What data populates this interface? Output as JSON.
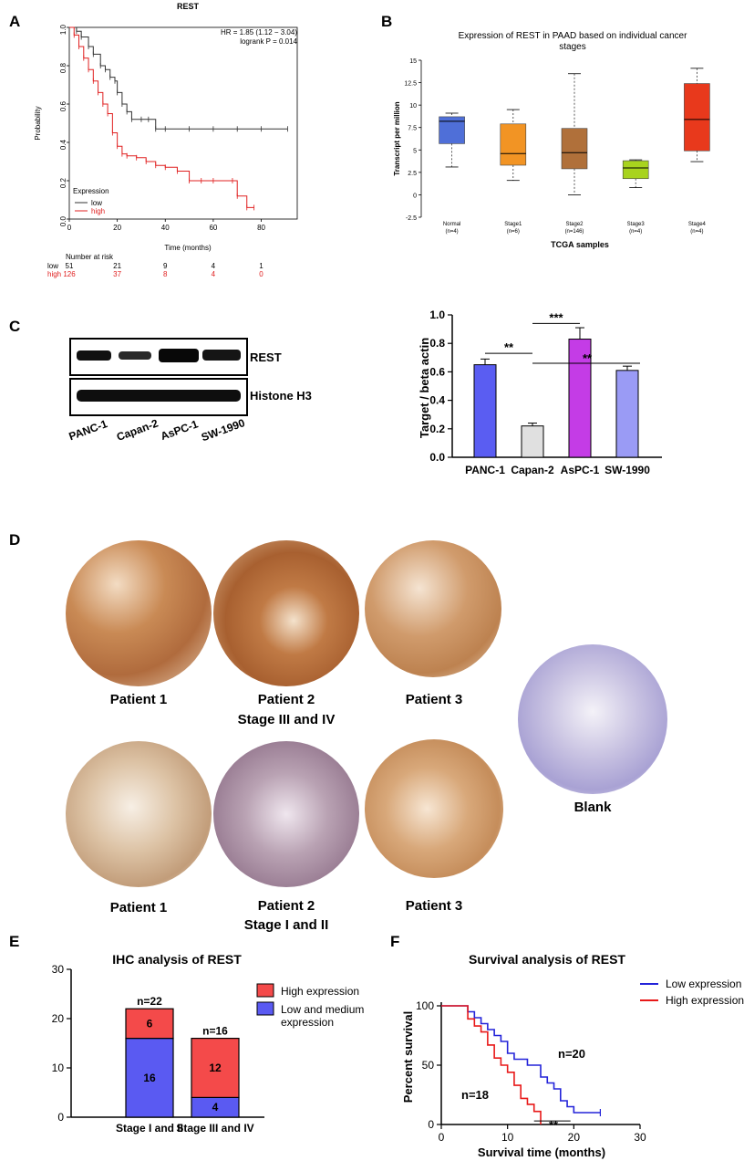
{
  "panels": {
    "a": "A",
    "b": "B",
    "c": "C",
    "d": "D",
    "e": "E",
    "f": "F"
  },
  "colors": {
    "km_low": "#333333",
    "km_high": "#e02020",
    "box_normal": "#4f6fd8",
    "box_s1": "#f29424",
    "box_s2": "#b0703a",
    "box_s3": "#a8d31e",
    "box_s4": "#e8391c",
    "bar_panc": "#5a5df2",
    "bar_capan": "#e0e0e0",
    "bar_aspc": "#c43ce6",
    "bar_sw": "#9a9bf5",
    "ihc_high": "#f44a4a",
    "ihc_low": "#5a5af2",
    "surv_low": "#2323d9",
    "surv_high": "#e81919"
  },
  "panelA": {
    "title": "REST",
    "hr": "HR = 1.85 (1.12 − 3.04)",
    "logrank": "logrank P = 0.014",
    "ylabel": "Probability",
    "xlabel": "Time (months)",
    "legend_title": "Expression",
    "legend_low": "low",
    "legend_high": "high",
    "risk_title": "Number at risk",
    "risk_low_label": "low",
    "risk_high_label": "high",
    "risk_low": [
      "51",
      "21",
      "9",
      "4",
      "1"
    ],
    "risk_high": [
      "126",
      "37",
      "8",
      "4",
      "0"
    ]
  },
  "panelB": {
    "title_line1": "Expression of REST in PAAD based on individual cancer",
    "title_line2": "stages",
    "ylabel": "Transcript per million",
    "xlabel": "TCGA samples"
  },
  "panelC": {
    "blot1_label": "REST",
    "blot2_label": "Histone H3",
    "lanes": [
      "PANC-1",
      "Capan-2",
      "AsPC-1",
      "SW-1990"
    ],
    "ylabel": "Target / beta actin",
    "sig1": "**",
    "sig2": "***",
    "sig3": "**"
  },
  "panelD": {
    "row1": [
      "Patient 1",
      "Patient 2",
      "Patient 3"
    ],
    "row1_stage": "Stage III  and IV",
    "row2": [
      "Patient 1",
      "Patient 2",
      "Patient 3"
    ],
    "row2_stage": "Stage I  and II",
    "blank": "Blank"
  },
  "panelE": {
    "title": "IHC analysis of REST",
    "legend_high": "High expression",
    "legend_low_1": "Low and medium",
    "legend_low_2": "expression"
  },
  "panelF": {
    "title": "Survival analysis of REST",
    "legend_low": "Low expression",
    "legend_high": "High expression",
    "ylabel": "Percent survival",
    "xlabel": "Survival time (months)",
    "n_low": "n=20",
    "n_high": "n=18",
    "sig": "**"
  },
  "chart_data": [
    {
      "type": "line",
      "title": "REST",
      "xlabel": "Time (months)",
      "ylabel": "Probability",
      "xlim": [
        0,
        95
      ],
      "ylim": [
        0,
        1
      ],
      "xticks": [
        0,
        20,
        40,
        60,
        80
      ],
      "yticks": [
        0.0,
        0.2,
        0.4,
        0.6,
        0.8,
        1.0
      ],
      "series": [
        {
          "name": "low",
          "x": [
            0,
            3,
            5,
            8,
            10,
            13,
            15,
            17,
            19,
            20,
            22,
            24,
            26,
            30,
            33,
            36,
            40,
            50,
            60,
            70,
            80,
            91
          ],
          "y": [
            1.0,
            0.98,
            0.95,
            0.9,
            0.86,
            0.8,
            0.78,
            0.74,
            0.72,
            0.66,
            0.6,
            0.56,
            0.52,
            0.52,
            0.52,
            0.47,
            0.47,
            0.47,
            0.47,
            0.47,
            0.47,
            0.47
          ]
        },
        {
          "name": "high",
          "x": [
            0,
            2,
            4,
            6,
            8,
            10,
            12,
            14,
            16,
            18,
            20,
            22,
            24,
            28,
            32,
            36,
            40,
            45,
            50,
            55,
            60,
            68,
            70,
            74,
            77
          ],
          "y": [
            1.0,
            0.96,
            0.9,
            0.84,
            0.78,
            0.72,
            0.66,
            0.6,
            0.55,
            0.45,
            0.38,
            0.34,
            0.33,
            0.32,
            0.3,
            0.28,
            0.27,
            0.25,
            0.2,
            0.2,
            0.2,
            0.2,
            0.12,
            0.06,
            0.06
          ]
        }
      ]
    },
    {
      "type": "box",
      "title": "Expression of REST in PAAD based on individual cancer stages",
      "xlabel": "TCGA samples",
      "ylabel": "Transcript per million",
      "ylim": [
        -2.5,
        15
      ],
      "yticks": [
        -2.5,
        0,
        2.5,
        5,
        7.5,
        10,
        12.5,
        15
      ],
      "categories": [
        "Normal",
        "Stage1",
        "Stage2",
        "Stage3",
        "Stage4"
      ],
      "counts": [
        "(n=4)",
        "(n=6)",
        "(n=146)",
        "(n=4)",
        "(n=4)"
      ],
      "boxes": [
        {
          "min": 3.1,
          "q1": 5.7,
          "median": 8.2,
          "q3": 8.7,
          "max": 9.1
        },
        {
          "min": 1.6,
          "q1": 3.3,
          "median": 4.6,
          "q3": 7.9,
          "max": 9.5
        },
        {
          "min": 0.0,
          "q1": 2.9,
          "median": 4.7,
          "q3": 7.4,
          "max": 13.5
        },
        {
          "min": 0.8,
          "q1": 1.8,
          "median": 3.0,
          "q3": 3.8,
          "max": 3.9
        },
        {
          "min": 3.7,
          "q1": 4.9,
          "median": 8.4,
          "q3": 12.4,
          "max": 14.1
        }
      ]
    },
    {
      "type": "bar",
      "categories": [
        "PANC-1",
        "Capan-2",
        "AsPC-1",
        "SW-1990"
      ],
      "values": [
        0.65,
        0.22,
        0.83,
        0.61
      ],
      "errors": [
        0.04,
        0.02,
        0.08,
        0.03
      ],
      "ylabel": "Target / beta actin",
      "ylim": [
        0,
        1.0
      ],
      "yticks": [
        0.0,
        0.2,
        0.4,
        0.6,
        0.8,
        1.0
      ]
    },
    {
      "type": "bar",
      "stacked": true,
      "title": "IHC analysis of REST",
      "categories": [
        "Stage I  and II",
        "Stage III  and IV"
      ],
      "series": [
        {
          "name": "Low and medium expression",
          "values": [
            16,
            4
          ]
        },
        {
          "name": "High expression",
          "values": [
            6,
            12
          ]
        }
      ],
      "totals": [
        "n=22",
        "n=16"
      ],
      "ylim": [
        0,
        30
      ],
      "yticks": [
        0,
        10,
        20,
        30
      ]
    },
    {
      "type": "line",
      "title": "Survival analysis of REST",
      "xlabel": "Survival time (months)",
      "ylabel": "Percent survival",
      "xlim": [
        0,
        30
      ],
      "ylim": [
        0,
        100
      ],
      "xticks": [
        0,
        10,
        20,
        30
      ],
      "yticks": [
        0,
        50,
        100
      ],
      "series": [
        {
          "name": "Low expression",
          "x": [
            0,
            4,
            5,
            6,
            7,
            8,
            9,
            10,
            11,
            12,
            13,
            14,
            15,
            16,
            17,
            18,
            19,
            20,
            24
          ],
          "y": [
            100,
            95,
            90,
            85,
            80,
            75,
            70,
            60,
            55,
            55,
            50,
            50,
            40,
            35,
            30,
            20,
            15,
            10,
            10
          ]
        },
        {
          "name": "High expression",
          "x": [
            0,
            4,
            5,
            6,
            7,
            8,
            9,
            10,
            11,
            12,
            13,
            14,
            15
          ],
          "y": [
            100,
            89,
            83,
            78,
            67,
            56,
            50,
            44,
            33,
            22,
            17,
            11,
            0
          ]
        }
      ]
    }
  ]
}
